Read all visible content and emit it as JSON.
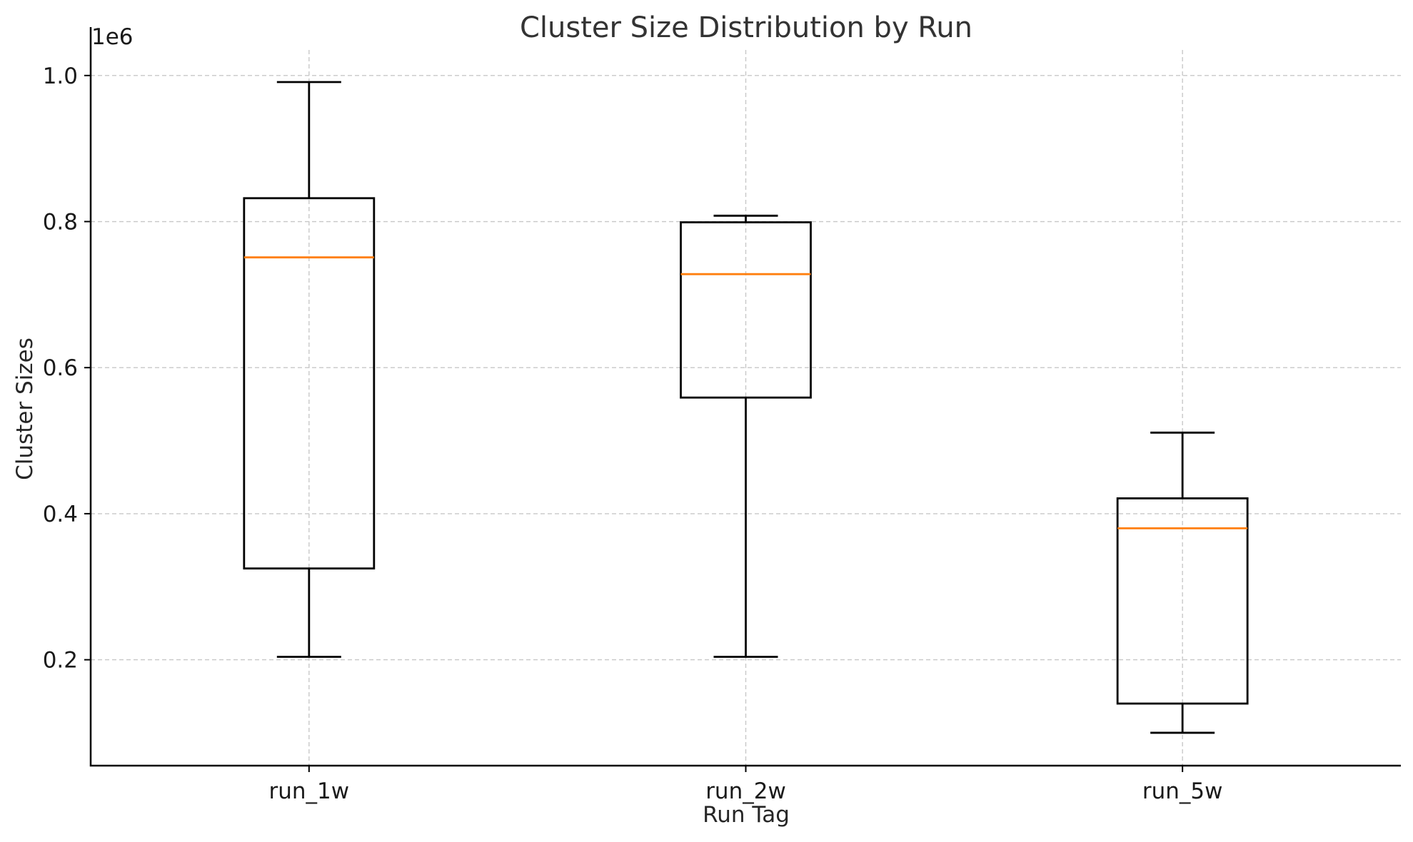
{
  "chart_data": {
    "type": "box",
    "title": "Cluster Size Distribution by Run",
    "xlabel": "Run Tag",
    "ylabel": "Cluster Sizes",
    "y_offset_label": "1e6",
    "y_scale": 1000000,
    "ylim": [
      0.055,
      1.035
    ],
    "y_ticks": [
      0.2,
      0.4,
      0.6,
      0.8,
      1.0
    ],
    "y_tick_labels": [
      "0.2",
      "0.4",
      "0.6",
      "0.8",
      "1.0"
    ],
    "grid": true,
    "categories": [
      "run_1w",
      "run_2w",
      "run_5w"
    ],
    "boxes": [
      {
        "category": "run_1w",
        "whisker_low": 0.204,
        "q1": 0.325,
        "median": 0.751,
        "q3": 0.832,
        "whisker_high": 0.991
      },
      {
        "category": "run_2w",
        "whisker_low": 0.204,
        "q1": 0.559,
        "median": 0.728,
        "q3": 0.799,
        "whisker_high": 0.808
      },
      {
        "category": "run_5w",
        "whisker_low": 0.1,
        "q1": 0.14,
        "median": 0.38,
        "q3": 0.421,
        "whisker_high": 0.511
      }
    ],
    "colors": {
      "box": "#000000",
      "median": "#ff7f0e",
      "grid": "#c8c8c8"
    }
  }
}
